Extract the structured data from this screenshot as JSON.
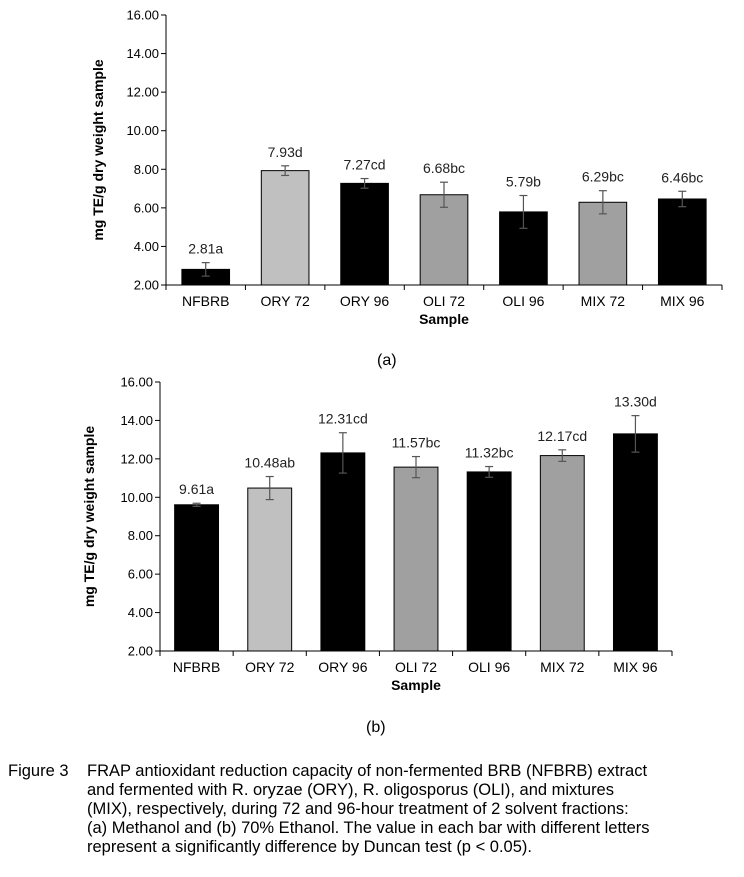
{
  "chart_data": [
    {
      "type": "bar",
      "panel": "(a)",
      "xlabel": "Sample",
      "ylabel": "mg TE/g dry weight sample",
      "ylim": [
        2.0,
        16.0
      ],
      "yticks": [
        "2.00",
        "4.00",
        "6.00",
        "8.00",
        "10.00",
        "12.00",
        "14.00",
        "16.00"
      ],
      "grid": false,
      "categories": [
        "NFBRB",
        "ORY 72",
        "ORY 96",
        "OLI 72",
        "OLI 96",
        "MIX 72",
        "MIX 96"
      ],
      "values": [
        2.81,
        7.93,
        7.27,
        6.68,
        5.79,
        6.29,
        6.46
      ],
      "errors": [
        0.35,
        0.25,
        0.25,
        0.65,
        0.85,
        0.6,
        0.4
      ],
      "labels": [
        "2.81a",
        "7.93d",
        "7.27cd",
        "6.68bc",
        "5.79b",
        "6.29bc",
        "6.46bc"
      ],
      "colors": [
        "#000000",
        "#c0c0c0",
        "#000000",
        "#a0a0a0",
        "#000000",
        "#a0a0a0",
        "#000000"
      ]
    },
    {
      "type": "bar",
      "panel": "(b)",
      "xlabel": "Sample",
      "ylabel": "mg TE/g dry weight sample",
      "ylim": [
        2.0,
        16.0
      ],
      "yticks": [
        "2.00",
        "4.00",
        "6.00",
        "8.00",
        "10.00",
        "12.00",
        "14.00",
        "16.00"
      ],
      "grid": false,
      "categories": [
        "NFBRB",
        "ORY 72",
        "ORY 96",
        "OLI 72",
        "OLI 96",
        "MIX 72",
        "MIX 96"
      ],
      "values": [
        9.61,
        10.48,
        12.31,
        11.57,
        11.32,
        12.17,
        13.3
      ],
      "errors": [
        0.08,
        0.6,
        1.05,
        0.55,
        0.28,
        0.3,
        0.95
      ],
      "labels": [
        "9.61a",
        "10.48ab",
        "12.31cd",
        "11.57bc",
        "11.32bc",
        "12.17cd",
        "13.30d"
      ],
      "colors": [
        "#000000",
        "#c0c0c0",
        "#000000",
        "#a0a0a0",
        "#000000",
        "#a0a0a0",
        "#000000"
      ]
    }
  ],
  "caption": {
    "prefix": "Figure 3",
    "lines": [
      "FRAP antioxidant  reduction capacity of non-fermented BRB (NFBRB) extract",
      "and fermented with R. oryzae (ORY), R. oligosporus (OLI), and mixtures",
      "(MIX), respectively, during 72 and 96-hour treatment of 2 solvent fractions:",
      "(a) Methanol and (b) 70% Ethanol. The value in each bar with different letters",
      "represent a significantly difference by Duncan test (p < 0.05)."
    ]
  }
}
